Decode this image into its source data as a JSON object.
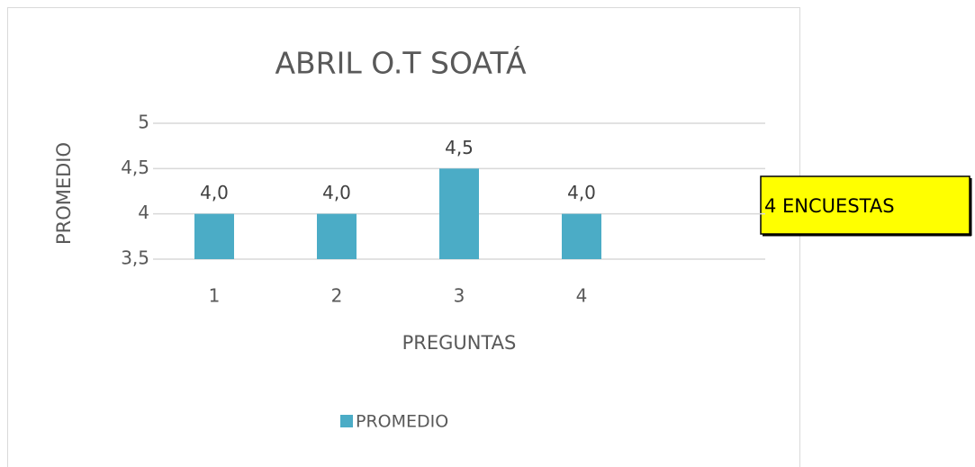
{
  "chart_data": {
    "type": "bar",
    "title": "ABRIL O.T SOATÁ",
    "categories": [
      "1",
      "2",
      "3",
      "4",
      null
    ],
    "series": [
      {
        "name": "PROMEDIO",
        "color": "#4bacc6",
        "values": [
          4,
          4,
          4.5,
          4,
          null
        ],
        "value_labels": [
          "4,0",
          "4,0",
          "4,5",
          "4,0",
          null
        ]
      }
    ],
    "ylim": [
      3.5,
      5
    ],
    "yticks": [
      {
        "value": 3.5,
        "label": "3,5"
      },
      4,
      {
        "value": 4.5,
        "label": "4,5"
      },
      5
    ],
    "xlabel": "PREGUNTAS",
    "ylabel": "PROMEDIO",
    "grid": true,
    "legend": "bottom",
    "annotation": "4 ENCUESTAS"
  }
}
